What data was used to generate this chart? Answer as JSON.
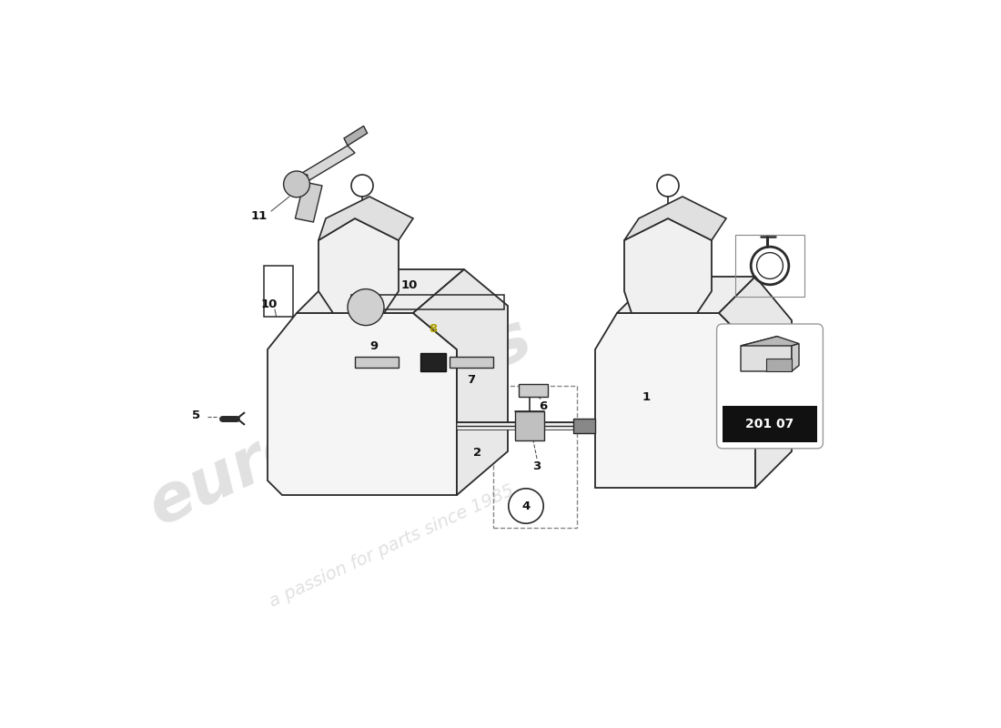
{
  "bg_color": "#ffffff",
  "line_color": "#2a2a2a",
  "light_line_color": "#888888",
  "badge_code": "201 07",
  "figsize": [
    11.0,
    8.0
  ],
  "dpi": 100
}
